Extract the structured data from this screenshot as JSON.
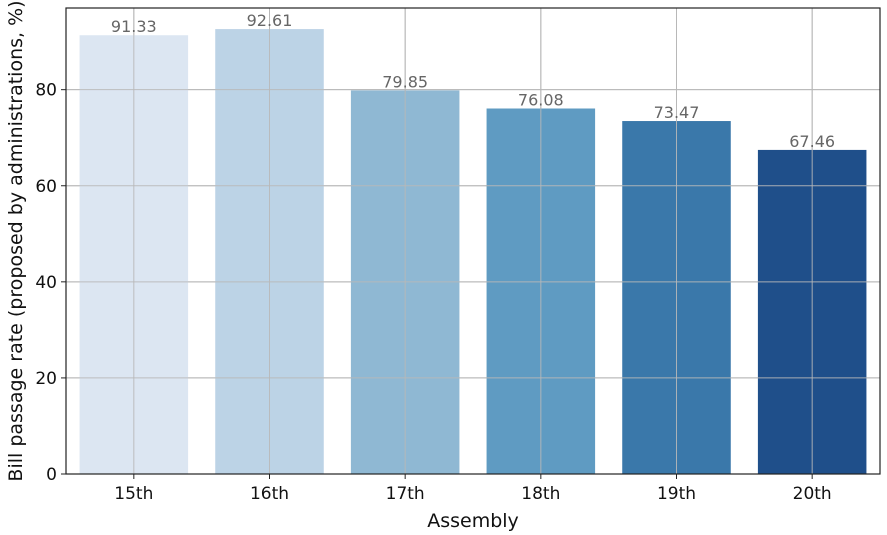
{
  "chart_data": {
    "type": "bar",
    "categories": [
      "15th",
      "16th",
      "17th",
      "18th",
      "19th",
      "20th"
    ],
    "values": [
      91.33,
      92.61,
      79.85,
      76.08,
      73.47,
      67.46
    ],
    "data_labels": [
      "91.33",
      "92.61",
      "79.85",
      "76.08",
      "73.47",
      "67.46"
    ],
    "xlabel": "Assembly",
    "ylabel": "Bill passage rate (proposed by administrations, %)",
    "ylim": [
      0,
      97
    ],
    "yticks": [
      0,
      20,
      40,
      60,
      80
    ],
    "grid": true,
    "legend": "none",
    "colors": [
      "#dce6f2",
      "#bcd3e6",
      "#8fb8d3",
      "#5f9bc2",
      "#3a78aa",
      "#1f4f8a"
    ]
  }
}
